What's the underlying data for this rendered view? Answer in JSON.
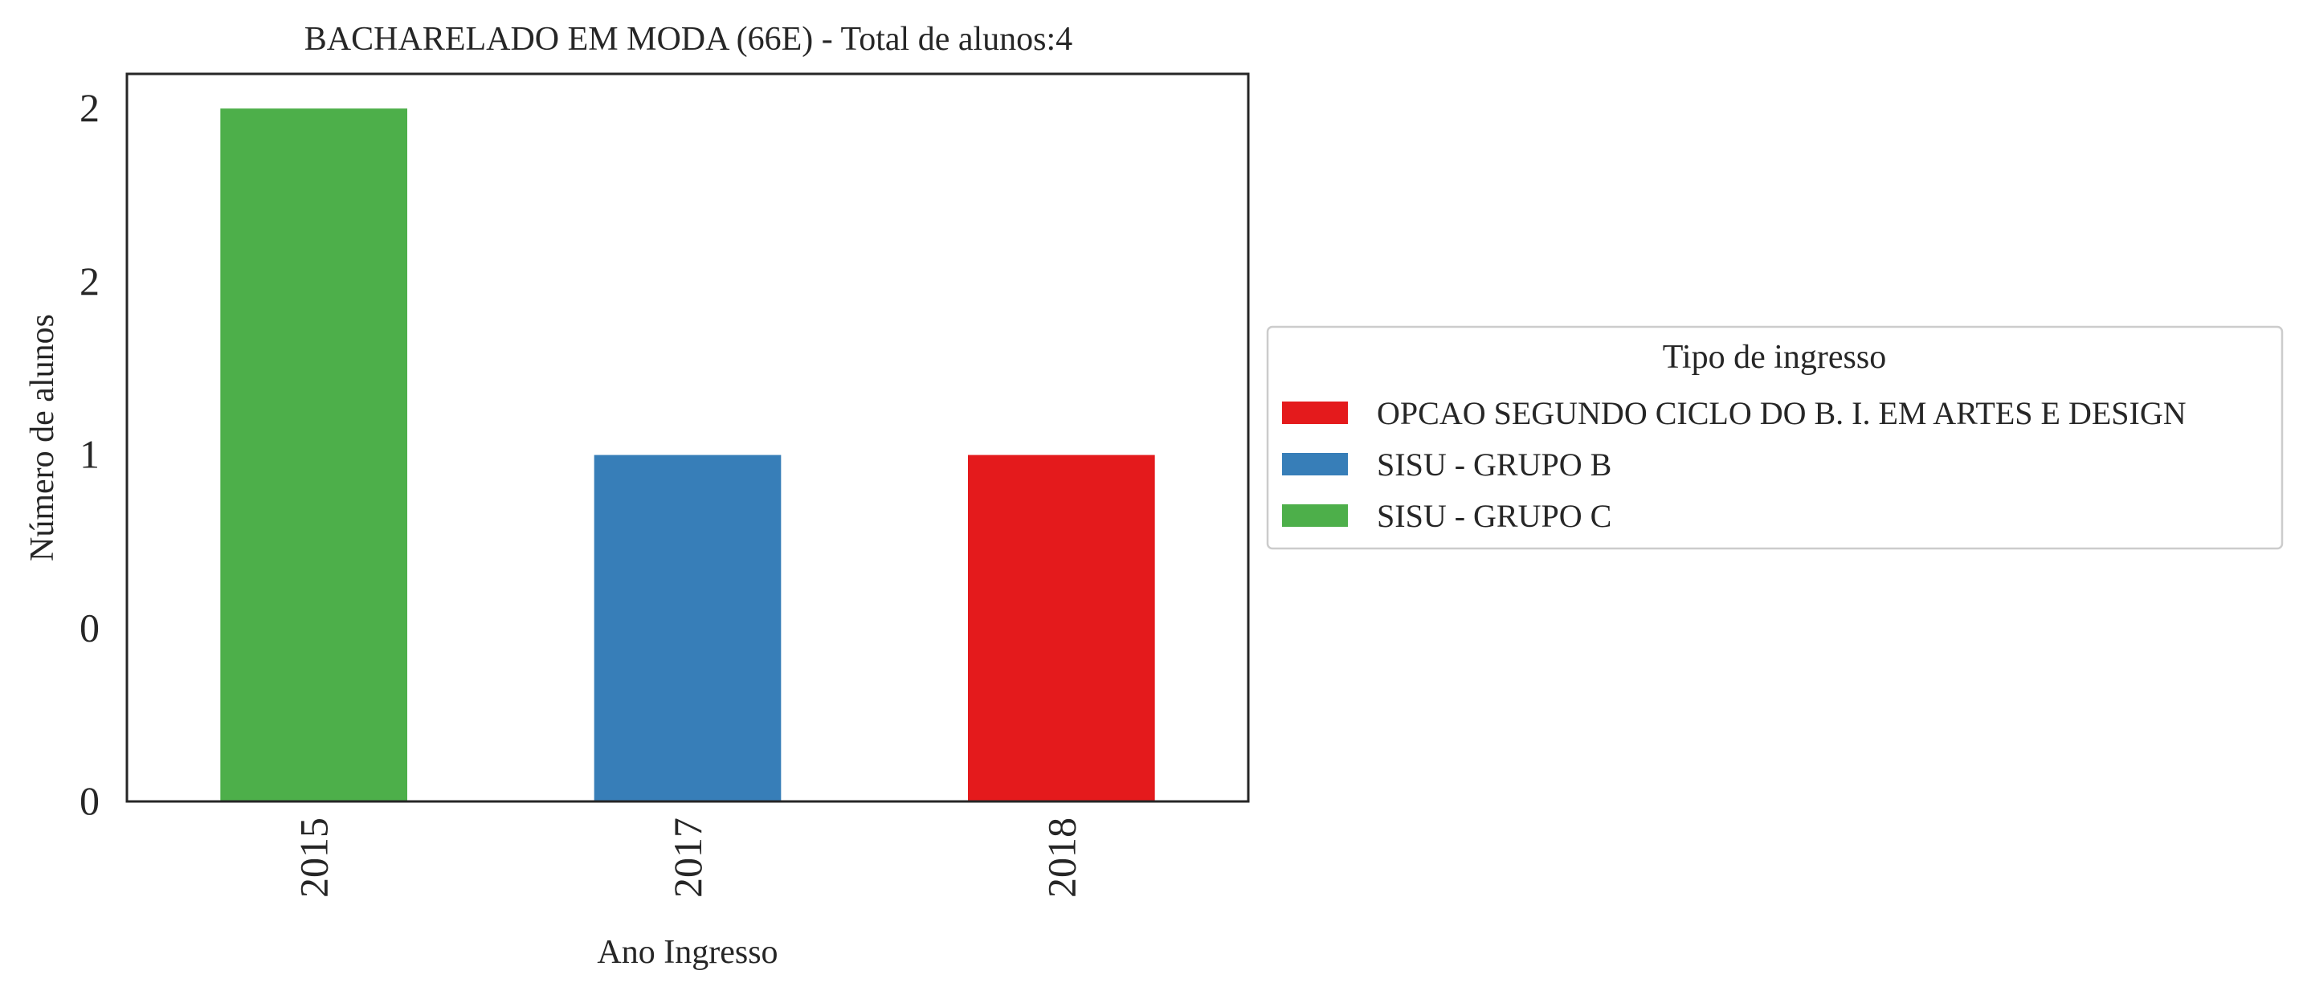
{
  "chart_data": {
    "type": "bar",
    "stacked": true,
    "title": "BACHARELADO EM MODA (66E) - Total de alunos:4",
    "xlabel": "Ano Ingresso",
    "ylabel": "Número de alunos",
    "categories": [
      "2015",
      "2017",
      "2018"
    ],
    "ylim": [
      0,
      2.1
    ],
    "ytick_values": [
      0,
      0.5,
      1,
      1.5,
      2
    ],
    "ytick_labels": [
      "0",
      "0",
      "1",
      "2",
      "2"
    ],
    "series": [
      {
        "name": "OPCAO SEGUNDO CICLO DO B. I. EM ARTES E DESIGN",
        "color": "#e41a1c",
        "values": [
          0,
          0,
          1
        ]
      },
      {
        "name": "SISU - GRUPO B",
        "color": "#377eb8",
        "values": [
          0,
          1,
          0
        ]
      },
      {
        "name": "SISU - GRUPO C",
        "color": "#4daf4a",
        "values": [
          2,
          0,
          0
        ]
      }
    ],
    "legend": {
      "title": "Tipo de ingresso",
      "placement": "center-left outside right"
    },
    "grid": false
  }
}
